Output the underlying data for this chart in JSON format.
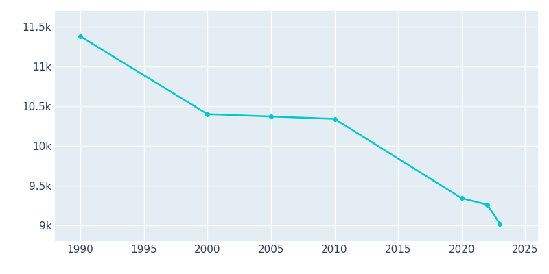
{
  "years": [
    1990,
    2000,
    2005,
    2010,
    2020,
    2022,
    2023
  ],
  "population": [
    11380,
    10400,
    10370,
    10340,
    9340,
    9260,
    9020
  ],
  "line_color": "#00C8C8",
  "marker_color": "#00C8C8",
  "background_color": "#FFFFFF",
  "plot_bg_color": "#E4ECF4",
  "grid_color": "#FFFFFF",
  "tick_color": "#2E3F5C",
  "xlim": [
    1988,
    2026
  ],
  "ylim": [
    8800,
    11700
  ],
  "yticks": [
    9000,
    9500,
    10000,
    10500,
    11000,
    11500
  ],
  "ytick_labels": [
    "9k",
    "9.5k",
    "10k",
    "10.5k",
    "11k",
    "11.5k"
  ],
  "xticks": [
    1990,
    1995,
    2000,
    2005,
    2010,
    2015,
    2020,
    2025
  ],
  "marker_size": 4,
  "line_width": 1.8,
  "fontsize": 11
}
